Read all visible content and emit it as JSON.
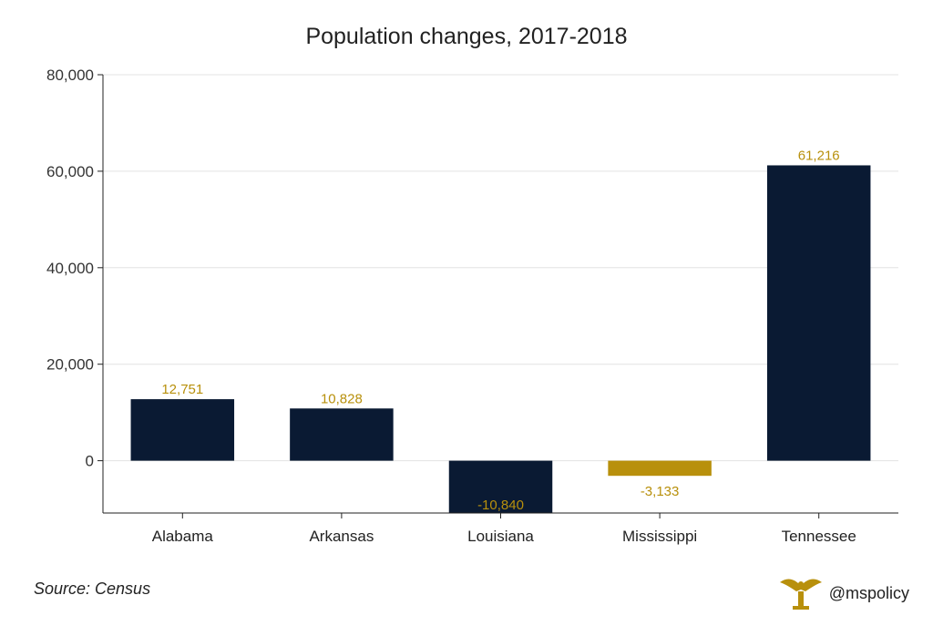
{
  "chart_data": {
    "type": "bar",
    "title": "Population changes, 2017-2018",
    "categories": [
      "Alabama",
      "Arkansas",
      "Louisiana",
      "Mississippi",
      "Tennessee"
    ],
    "values": [
      12751,
      10828,
      -10840,
      -3133,
      61216
    ],
    "data_labels": [
      "12,751",
      "10,828",
      "-10,840",
      "-3,133",
      "61,216"
    ],
    "bar_colors": [
      "#0a1a33",
      "#0a1a33",
      "#0a1a33",
      "#b8900c",
      "#0a1a33"
    ],
    "label_color": "#b8900c",
    "y_ticks": [
      0,
      20000,
      40000,
      60000,
      80000
    ],
    "y_tick_labels": [
      "0",
      "20,000",
      "40,000",
      "60,000",
      "80,000"
    ],
    "ylim": [
      -10840,
      80000
    ],
    "grid": true,
    "xlabel": "",
    "ylabel": ""
  },
  "footer": {
    "source": "Source: Census",
    "handle": "@mspolicy",
    "logo_icon": "eagle-logo-icon",
    "logo_color": "#b8900c"
  }
}
